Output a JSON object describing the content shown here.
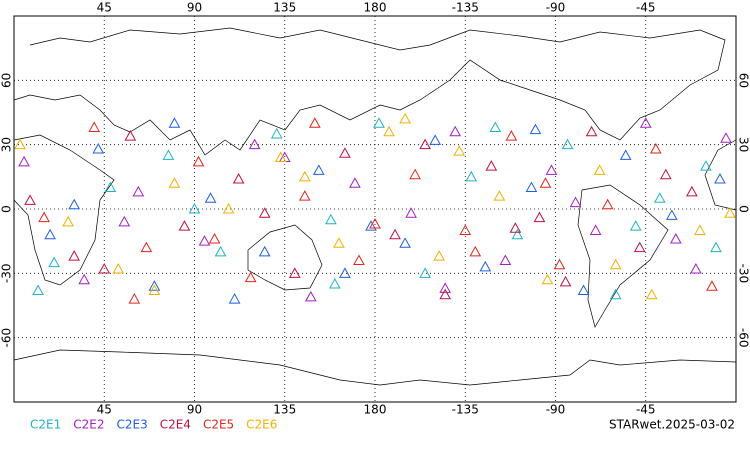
{
  "chart_data": {
    "type": "scatter",
    "xlim": [
      0,
      360
    ],
    "ylim": [
      -90,
      90
    ],
    "xticks": [
      45,
      90,
      135,
      180,
      {
        "value": 225,
        "label": "-135"
      },
      {
        "value": 270,
        "label": "-90"
      },
      {
        "value": 315,
        "label": "-45"
      }
    ],
    "yticks": [
      -60,
      -30,
      0,
      30,
      60
    ],
    "grid": true,
    "footer": "STARwet.2025-03-02",
    "series": [
      {
        "name": "C2E1",
        "color": "#1fb3c9",
        "x": [
          12,
          48,
          77,
          103,
          131,
          158,
          182,
          205,
          228,
          251,
          276,
          300,
          322,
          345,
          20,
          90,
          160,
          240,
          310,
          350
        ],
        "y": [
          -38,
          10,
          25,
          -20,
          35,
          -5,
          40,
          -30,
          15,
          -12,
          30,
          -40,
          5,
          20,
          -25,
          0,
          -35,
          38,
          -8,
          -18
        ]
      },
      {
        "name": "C2E2",
        "color": "#a41fc4",
        "x": [
          5,
          35,
          62,
          95,
          120,
          148,
          170,
          198,
          220,
          245,
          268,
          290,
          315,
          340,
          55,
          135,
          215,
          280,
          330,
          355
        ],
        "y": [
          22,
          -33,
          8,
          -15,
          30,
          -41,
          12,
          -2,
          36,
          -24,
          18,
          -10,
          40,
          -28,
          -6,
          24,
          -37,
          3,
          -14,
          33
        ]
      },
      {
        "name": "C2E3",
        "color": "#1f5fe0",
        "x": [
          18,
          42,
          70,
          98,
          125,
          152,
          178,
          210,
          235,
          258,
          284,
          305,
          328,
          352,
          80,
          165,
          260,
          195,
          110,
          30
        ],
        "y": [
          -12,
          28,
          -36,
          5,
          -20,
          18,
          -8,
          32,
          -27,
          10,
          -38,
          25,
          -3,
          14,
          40,
          -30,
          37,
          -16,
          -42,
          2
        ]
      },
      {
        "name": "C2E4",
        "color": "#c01040",
        "x": [
          8,
          30,
          58,
          85,
          112,
          140,
          165,
          190,
          215,
          238,
          262,
          288,
          312,
          338,
          45,
          125,
          205,
          275,
          325,
          250
        ],
        "y": [
          4,
          -22,
          34,
          -8,
          14,
          -30,
          26,
          -12,
          -40,
          20,
          -4,
          36,
          -18,
          8,
          -28,
          -2,
          30,
          -34,
          16,
          -9
        ]
      },
      {
        "name": "C2E5",
        "color": "#e3261b",
        "x": [
          15,
          40,
          66,
          92,
          118,
          145,
          172,
          200,
          225,
          248,
          272,
          296,
          320,
          348,
          100,
          180,
          265,
          60,
          150,
          230
        ],
        "y": [
          -4,
          38,
          -18,
          22,
          -32,
          6,
          -24,
          16,
          -10,
          34,
          -26,
          2,
          28,
          -36,
          -14,
          -7,
          12,
          -42,
          40,
          -20
        ]
      },
      {
        "name": "C2E6",
        "color": "#f2b000",
        "x": [
          3,
          27,
          52,
          80,
          107,
          133,
          162,
          187,
          212,
          242,
          266,
          292,
          318,
          342,
          70,
          145,
          222,
          300,
          357,
          195
        ],
        "y": [
          30,
          -6,
          -28,
          12,
          0,
          24,
          -16,
          36,
          -22,
          6,
          -33,
          18,
          -40,
          -10,
          -38,
          15,
          27,
          -26,
          -2,
          42
        ]
      }
    ]
  }
}
